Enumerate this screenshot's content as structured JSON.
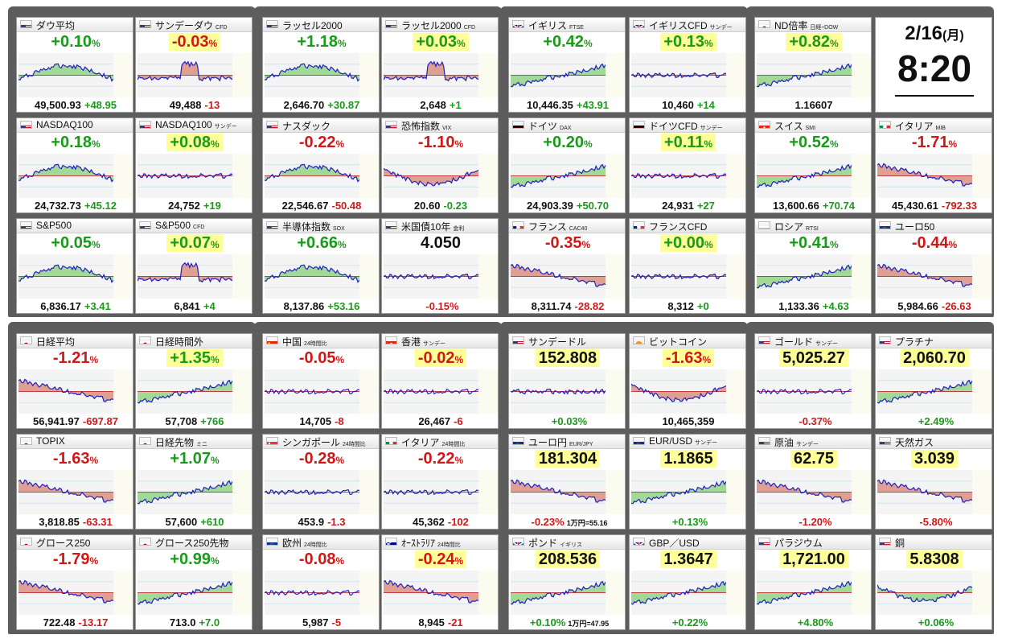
{
  "clock": {
    "date_main": "2/16",
    "date_day": "(月)",
    "time": "8:20"
  },
  "tiles": [
    {
      "name": "ダウ平均",
      "sub": "",
      "flag": "us",
      "change": "+0.10",
      "pct": "%",
      "dir": "pos",
      "hl": false,
      "price_int": "49,500",
      "price_dec": ".93",
      "diff": "+48.95",
      "diffdir": "pos",
      "trend": "hump",
      "area": "pos"
    },
    {
      "name": "サンデーダウ",
      "sub": "CFD",
      "flag": "us",
      "change": "-0.03",
      "pct": "%",
      "dir": "neg",
      "hl": true,
      "price_int": "49,488",
      "price_dec": "",
      "diff": "-13",
      "diffdir": "neg",
      "trend": "spike",
      "area": "neg"
    },
    {
      "name": "ラッセル2000",
      "sub": "",
      "flag": "us",
      "change": "+1.18",
      "pct": "%",
      "dir": "pos",
      "hl": false,
      "price_int": "2,646",
      "price_dec": ".70",
      "diff": "+30.87",
      "diffdir": "pos",
      "trend": "hump",
      "area": "pos"
    },
    {
      "name": "ラッセル2000",
      "sub": "CFD",
      "flag": "us",
      "change": "+0.03",
      "pct": "%",
      "dir": "pos",
      "hl": true,
      "price_int": "2,648",
      "price_dec": "",
      "diff": "+1",
      "diffdir": "pos",
      "trend": "spike",
      "area": "neg"
    },
    {
      "name": "イギリス",
      "sub": "FTSE",
      "flag": "uk",
      "change": "+0.42",
      "pct": "%",
      "dir": "pos",
      "hl": false,
      "price_int": "10,446",
      "price_dec": ".35",
      "diff": "+43.91",
      "diffdir": "pos",
      "trend": "rise",
      "area": "pos"
    },
    {
      "name": "イギリスCFD",
      "sub": "サンデー",
      "flag": "uk",
      "change": "+0.13",
      "pct": "%",
      "dir": "pos",
      "hl": true,
      "price_int": "10,460",
      "price_dec": "",
      "diff": "+14",
      "diffdir": "pos",
      "trend": "flat",
      "area": "neg"
    },
    {
      "name": "ND倍率",
      "sub": "日経÷DOW",
      "flag": "jp",
      "change": "+0.82",
      "pct": "%",
      "dir": "pos",
      "hl": true,
      "price_int": "1.16607",
      "price_dec": "",
      "diff": "",
      "diffdir": "pos",
      "trend": "rise",
      "area": "pos"
    },
    {
      "name": "NASDAQ100",
      "sub": "",
      "flag": "us",
      "change": "+0.18",
      "pct": "%",
      "dir": "pos",
      "hl": false,
      "price_int": "24,732",
      "price_dec": ".73",
      "diff": "+45.12",
      "diffdir": "pos",
      "trend": "hump",
      "area": "pos"
    },
    {
      "name": "NASDAQ100",
      "sub": "サンデー",
      "flag": "us",
      "change": "+0.08",
      "pct": "%",
      "dir": "pos",
      "hl": true,
      "price_int": "24,752",
      "price_dec": "",
      "diff": "+19",
      "diffdir": "pos",
      "trend": "flat",
      "area": "neg"
    },
    {
      "name": "ナスダック",
      "sub": "",
      "flag": "us",
      "change": "-0.22",
      "pct": "%",
      "dir": "neg",
      "hl": false,
      "price_int": "22,546",
      "price_dec": ".67",
      "diff": "-50.48",
      "diffdir": "neg",
      "trend": "hump",
      "area": "pos"
    },
    {
      "name": "恐怖指数",
      "sub": "VIX",
      "flag": "us",
      "change": "-1.10",
      "pct": "%",
      "dir": "neg",
      "hl": false,
      "price_int": "20.60",
      "price_dec": "",
      "diff": "-0.23",
      "diffdir": "pos",
      "trend": "dip",
      "area": "neg"
    },
    {
      "name": "ドイツ",
      "sub": "DAX",
      "flag": "de",
      "change": "+0.20",
      "pct": "%",
      "dir": "pos",
      "hl": false,
      "price_int": "24,903",
      "price_dec": ".39",
      "diff": "+50.70",
      "diffdir": "pos",
      "trend": "rise",
      "area": "pos"
    },
    {
      "name": "ドイツCFD",
      "sub": "サンデー",
      "flag": "de",
      "change": "+0.11",
      "pct": "%",
      "dir": "pos",
      "hl": true,
      "price_int": "24,931",
      "price_dec": "",
      "diff": "+27",
      "diffdir": "pos",
      "trend": "flat",
      "area": "neg"
    },
    {
      "name": "スイス",
      "sub": "SMI",
      "flag": "ch",
      "change": "+0.52",
      "pct": "%",
      "dir": "pos",
      "hl": false,
      "price_int": "13,600",
      "price_dec": ".66",
      "diff": "+70.74",
      "diffdir": "pos",
      "trend": "rise",
      "area": "pos"
    },
    {
      "name": "イタリア",
      "sub": "MIB",
      "flag": "it",
      "change": "-1.71",
      "pct": "%",
      "dir": "neg",
      "hl": false,
      "price_int": "45,430",
      "price_dec": ".61",
      "diff": "-792.33",
      "diffdir": "neg",
      "trend": "fall",
      "area": "neg"
    },
    {
      "name": "S&P500",
      "sub": "",
      "flag": "us",
      "change": "+0.05",
      "pct": "%",
      "dir": "pos",
      "hl": false,
      "price_int": "6,836",
      "price_dec": ".17",
      "diff": "+3.41",
      "diffdir": "pos",
      "trend": "hump",
      "area": "pos"
    },
    {
      "name": "S&P500",
      "sub": "CFD",
      "flag": "us",
      "change": "+0.07",
      "pct": "%",
      "dir": "pos",
      "hl": true,
      "price_int": "6,841",
      "price_dec": "",
      "diff": "+4",
      "diffdir": "pos",
      "trend": "spike",
      "area": "neg"
    },
    {
      "name": "半導体指数",
      "sub": "SOX",
      "flag": "us",
      "change": "+0.66",
      "pct": "%",
      "dir": "pos",
      "hl": false,
      "price_int": "8,137",
      "price_dec": ".86",
      "diff": "+53.16",
      "diffdir": "pos",
      "trend": "hump",
      "area": "pos"
    },
    {
      "name": "米国債10年",
      "sub": "金利",
      "flag": "us",
      "change": "4.050",
      "pct": "",
      "dir": "blk",
      "hl": false,
      "price_int": "",
      "price_dec": "",
      "diff": "-0.15%",
      "diffdir": "neg",
      "trend": "flat",
      "area": "neg"
    },
    {
      "name": "フランス",
      "sub": "CAC40",
      "flag": "fr",
      "change": "-0.35",
      "pct": "%",
      "dir": "neg",
      "hl": false,
      "price_int": "8,311",
      "price_dec": ".74",
      "diff": "-28.82",
      "diffdir": "neg",
      "trend": "fall",
      "area": "neg"
    },
    {
      "name": "フランスCFD",
      "sub": "",
      "flag": "fr",
      "change": "+0.00",
      "pct": "%",
      "dir": "pos",
      "hl": true,
      "price_int": "8,312",
      "price_dec": "",
      "diff": "+0",
      "diffdir": "pos",
      "trend": "flat",
      "area": "neg"
    },
    {
      "name": "ロシア",
      "sub": "RTSI",
      "flag": "ru",
      "change": "+0.41",
      "pct": "%",
      "dir": "pos",
      "hl": false,
      "price_int": "1,133",
      "price_dec": ".36",
      "diff": "+4.63",
      "diffdir": "pos",
      "trend": "rise",
      "area": "pos"
    },
    {
      "name": "ユーロ50",
      "sub": "",
      "flag": "eu",
      "change": "-0.44",
      "pct": "%",
      "dir": "neg",
      "hl": false,
      "price_int": "5,984",
      "price_dec": ".66",
      "diff": "-26.63",
      "diffdir": "neg",
      "trend": "fall",
      "area": "neg"
    },
    {
      "name": "日経平均",
      "sub": "",
      "flag": "jp",
      "change": "-1.21",
      "pct": "%",
      "dir": "neg",
      "hl": false,
      "price_int": "56,941",
      "price_dec": ".97",
      "diff": "-697.87",
      "diffdir": "neg",
      "trend": "fall",
      "area": "neg"
    },
    {
      "name": "日経時間外",
      "sub": "",
      "flag": "jp",
      "change": "+1.35",
      "pct": "%",
      "dir": "pos",
      "hl": true,
      "price_int": "57,708",
      "price_dec": "",
      "diff": "+766",
      "diffdir": "pos",
      "trend": "rise",
      "area": "pos"
    },
    {
      "name": "中国",
      "sub": "24時間比",
      "flag": "cn",
      "change": "-0.05",
      "pct": "%",
      "dir": "neg",
      "hl": false,
      "price_int": "14,705",
      "price_dec": "",
      "diff": "-8",
      "diffdir": "neg",
      "trend": "flat",
      "area": "none"
    },
    {
      "name": "香港",
      "sub": "サンデー",
      "flag": "hk",
      "change": "-0.02",
      "pct": "%",
      "dir": "neg",
      "hl": true,
      "price_int": "26,467",
      "price_dec": "",
      "diff": "-6",
      "diffdir": "neg",
      "trend": "flat",
      "area": "none"
    },
    {
      "name": "サンデードル",
      "sub": "",
      "flag": "us",
      "change": "152.808",
      "pct": "",
      "dir": "blk",
      "hl": true,
      "price_int": "",
      "price_dec": "",
      "diff": "+0.03%",
      "diffdir": "pos",
      "trend": "flat",
      "area": "pos"
    },
    {
      "name": "ビットコイン",
      "sub": "",
      "flag": "btc",
      "change": "-1.63",
      "pct": "%",
      "dir": "neg",
      "hl": true,
      "price_int": "10,465,359",
      "price_dec": "",
      "diff": "",
      "diffdir": "neg",
      "trend": "dip",
      "area": "neg"
    },
    {
      "name": "ゴールド",
      "sub": "サンデー",
      "flag": "us",
      "change": "5,025.27",
      "pct": "",
      "dir": "blk",
      "hl": true,
      "price_int": "",
      "price_dec": "",
      "diff": "-0.37%",
      "diffdir": "neg",
      "trend": "flat",
      "area": "none"
    },
    {
      "name": "プラチナ",
      "sub": "",
      "flag": "us",
      "change": "2,060.70",
      "pct": "",
      "dir": "blk",
      "hl": true,
      "price_int": "",
      "price_dec": "",
      "diff": "+2.49%",
      "diffdir": "pos",
      "trend": "rise",
      "area": "pos"
    },
    {
      "name": "TOPIX",
      "sub": "",
      "flag": "jp",
      "change": "-1.63",
      "pct": "%",
      "dir": "neg",
      "hl": false,
      "price_int": "3,818",
      "price_dec": ".85",
      "diff": "-63.31",
      "diffdir": "neg",
      "trend": "fall",
      "area": "neg"
    },
    {
      "name": "日経先物",
      "sub": "ミニ",
      "flag": "jp",
      "change": "+1.07",
      "pct": "%",
      "dir": "pos",
      "hl": false,
      "price_int": "57,600",
      "price_dec": "",
      "diff": "+610",
      "diffdir": "pos",
      "trend": "rise",
      "area": "pos"
    },
    {
      "name": "シンガポール",
      "sub": "24時間比",
      "flag": "sg",
      "change": "-0.28",
      "pct": "%",
      "dir": "neg",
      "hl": false,
      "price_int": "453",
      "price_dec": ".9",
      "diff": "-1.3",
      "diffdir": "neg",
      "trend": "flat",
      "area": "none"
    },
    {
      "name": "イタリア",
      "sub": "24時間比",
      "flag": "it",
      "change": "-0.22",
      "pct": "%",
      "dir": "neg",
      "hl": false,
      "price_int": "45,362",
      "price_dec": "",
      "diff": "-102",
      "diffdir": "neg",
      "trend": "flat",
      "area": "none"
    },
    {
      "name": "ユーロ円",
      "sub": "EUR/JPY",
      "flag": "eu",
      "change": "181.304",
      "pct": "",
      "dir": "blk",
      "hl": true,
      "price_int": "",
      "price_dec": "",
      "diff": "-0.23%",
      "diffdir": "neg",
      "extra": "1万円=55.16",
      "trend": "fall",
      "area": "neg"
    },
    {
      "name": "EUR/USD",
      "sub": "サンデー",
      "flag": "eu",
      "change": "1.1865",
      "pct": "",
      "dir": "blk",
      "hl": true,
      "price_int": "",
      "price_dec": "",
      "diff": "+0.13%",
      "diffdir": "pos",
      "trend": "rise",
      "area": "pos"
    },
    {
      "name": "原油",
      "sub": "サンデー",
      "flag": "us",
      "change": "62.75",
      "pct": "",
      "dir": "blk",
      "hl": true,
      "price_int": "",
      "price_dec": "",
      "diff": "-1.20%",
      "diffdir": "neg",
      "trend": "fall",
      "area": "neg"
    },
    {
      "name": "天然ガス",
      "sub": "",
      "flag": "us",
      "change": "3.039",
      "pct": "",
      "dir": "blk",
      "hl": true,
      "price_int": "",
      "price_dec": "",
      "diff": "-5.80%",
      "diffdir": "neg",
      "trend": "fall",
      "area": "neg"
    },
    {
      "name": "グロース250",
      "sub": "",
      "flag": "jp",
      "change": "-1.79",
      "pct": "%",
      "dir": "neg",
      "hl": false,
      "price_int": "722",
      "price_dec": ".48",
      "diff": "-13.17",
      "diffdir": "neg",
      "trend": "fall",
      "area": "neg"
    },
    {
      "name": "グロース250先物",
      "sub": "",
      "flag": "jp",
      "change": "+0.99",
      "pct": "%",
      "dir": "pos",
      "hl": false,
      "price_int": "713",
      "price_dec": ".0",
      "diff": "+7.0",
      "diffdir": "pos",
      "trend": "rise",
      "area": "pos"
    },
    {
      "name": "欧州",
      "sub": "24時間比",
      "flag": "eu",
      "change": "-0.08",
      "pct": "%",
      "dir": "neg",
      "hl": false,
      "price_int": "5,987",
      "price_dec": "",
      "diff": "-5",
      "diffdir": "neg",
      "trend": "flat",
      "area": "none"
    },
    {
      "name": "ｵｰｽﾄﾗﾘｱ",
      "sub": "24時間比",
      "flag": "au",
      "change": "-0.24",
      "pct": "%",
      "dir": "neg",
      "hl": true,
      "price_int": "8,945",
      "price_dec": "",
      "diff": "-21",
      "diffdir": "neg",
      "trend": "fall",
      "area": "neg"
    },
    {
      "name": "ポンド",
      "sub": "イギリス",
      "flag": "uk",
      "change": "208.536",
      "pct": "",
      "dir": "blk",
      "hl": true,
      "price_int": "",
      "price_dec": "",
      "diff": "+0.10%",
      "diffdir": "pos",
      "extra": "1万円=47.95",
      "trend": "rise",
      "area": "pos"
    },
    {
      "name": "GBP／USD",
      "sub": "",
      "flag": "uk",
      "change": "1.3647",
      "pct": "",
      "dir": "blk",
      "hl": true,
      "price_int": "",
      "price_dec": "",
      "diff": "+0.22%",
      "diffdir": "pos",
      "trend": "rise",
      "area": "pos"
    },
    {
      "name": "パラジウム",
      "sub": "",
      "flag": "us",
      "change": "1,721.00",
      "pct": "",
      "dir": "blk",
      "hl": true,
      "price_int": "",
      "price_dec": "",
      "diff": "+4.80%",
      "diffdir": "pos",
      "trend": "rise",
      "area": "pos"
    },
    {
      "name": "銅",
      "sub": "",
      "flag": "us",
      "change": "5.8308",
      "pct": "",
      "dir": "blk",
      "hl": true,
      "price_int": "",
      "price_dec": "",
      "diff": "+0.06%",
      "diffdir": "pos",
      "trend": "dip",
      "area": "pos"
    }
  ],
  "colors": {
    "up": "#1a9a1a",
    "down": "#d01818",
    "panel": "#5d5d5d",
    "highlight": "#ffff99",
    "area_up": "#8fd27e",
    "area_down": "#d98a7a",
    "line": "#2020c0"
  }
}
